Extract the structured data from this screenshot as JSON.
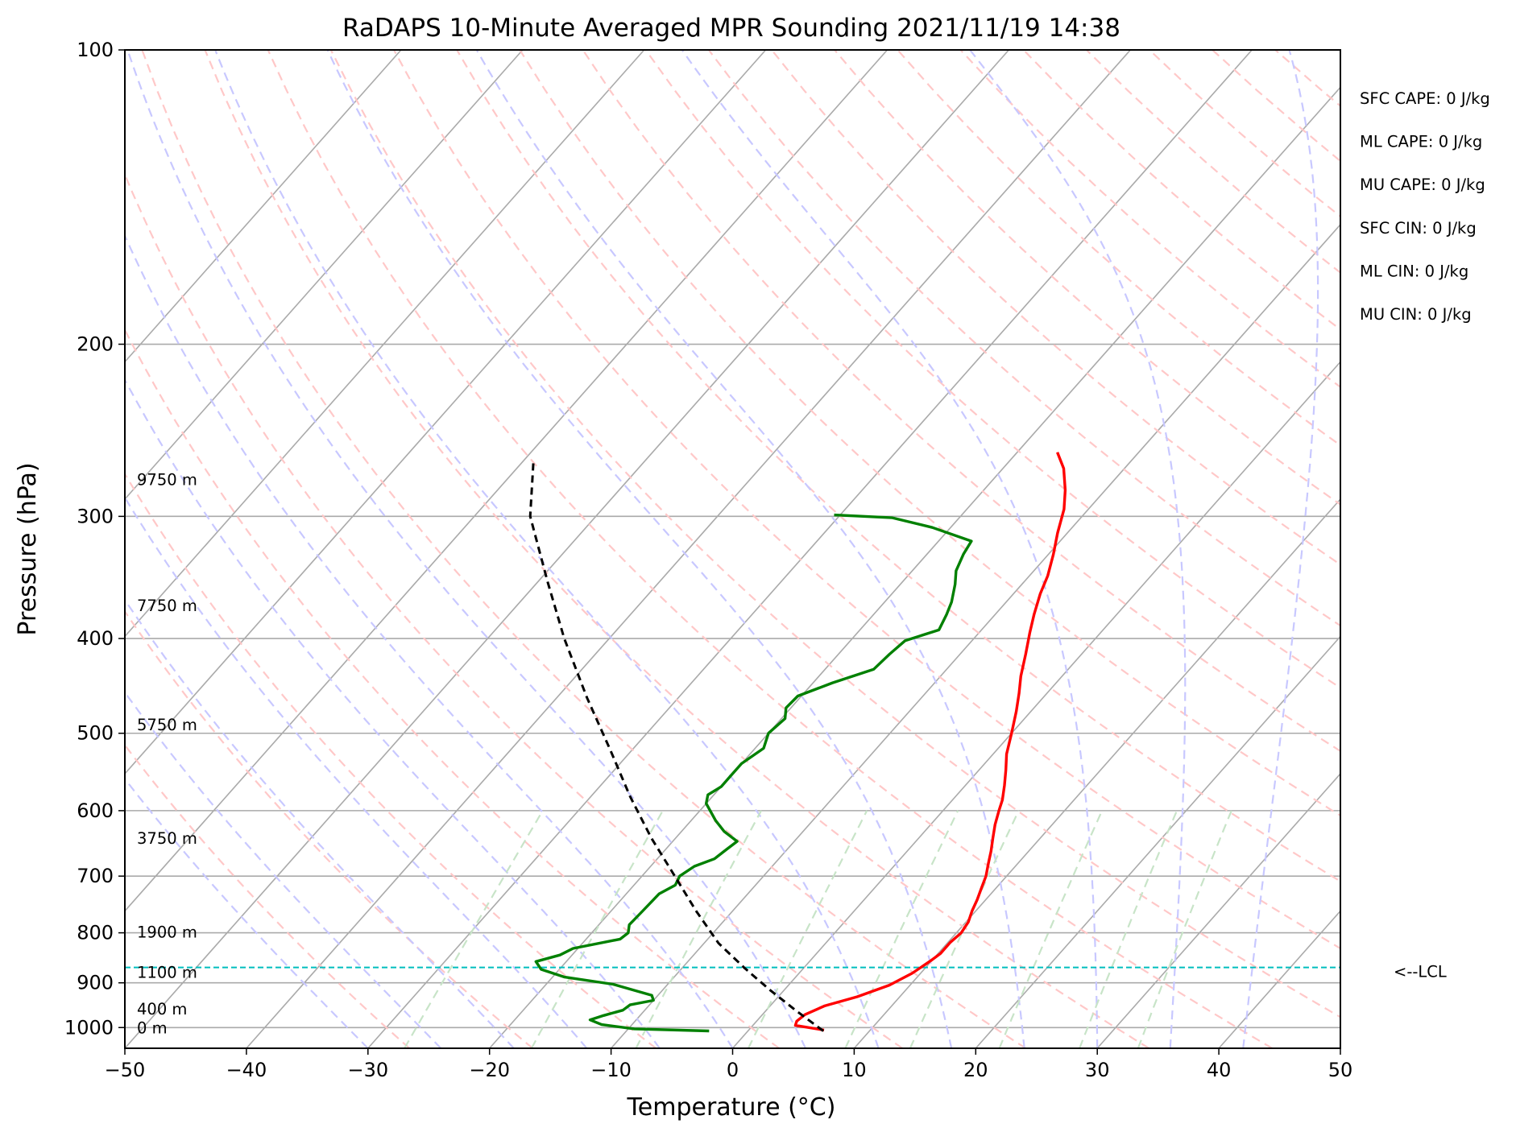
{
  "chart_data": {
    "type": "line",
    "title": "RaDAPS 10-Minute Averaged MPR Sounding 2021/11/19 14:38",
    "xlabel": "Temperature (°C)",
    "ylabel": "Pressure (hPa)",
    "xlim": [
      -50,
      50
    ],
    "ylim": [
      1050,
      100
    ],
    "y_scale": "log",
    "skew": true,
    "grid": true,
    "x_ticks": [
      -50,
      -40,
      -30,
      -20,
      -10,
      0,
      10,
      20,
      30,
      40,
      50
    ],
    "x_tick_labels": [
      "−50",
      "−40",
      "−30",
      "−20",
      "−10",
      "0",
      "10",
      "20",
      "30",
      "40",
      "50"
    ],
    "y_ticks": [
      100,
      200,
      300,
      400,
      500,
      600,
      700,
      800,
      900,
      1000
    ],
    "y_tick_labels": [
      "100",
      "200",
      "300",
      "400",
      "500",
      "600",
      "700",
      "800",
      "900",
      "1000"
    ],
    "series": [
      {
        "color": "#ff0000",
        "points": [
          [
            1006,
            6.2
          ],
          [
            995,
            3.5
          ],
          [
            985,
            3.3
          ],
          [
            970,
            3.5
          ],
          [
            950,
            4.5
          ],
          [
            930,
            6.5
          ],
          [
            905,
            8.3
          ],
          [
            880,
            9.3
          ],
          [
            855,
            9.9
          ],
          [
            840,
            10.2
          ],
          [
            818,
            10.2
          ],
          [
            800,
            10.4
          ],
          [
            780,
            10.2
          ],
          [
            760,
            9.7
          ],
          [
            740,
            9.3
          ],
          [
            720,
            8.8
          ],
          [
            700,
            8.3
          ],
          [
            680,
            7.6
          ],
          [
            660,
            6.9
          ],
          [
            640,
            6.1
          ],
          [
            620,
            5.3
          ],
          [
            600,
            4.6
          ],
          [
            585,
            4.1
          ],
          [
            565,
            3.2
          ],
          [
            545,
            2.2
          ],
          [
            525,
            1.1
          ],
          [
            500,
            0.0
          ],
          [
            475,
            -1.2
          ],
          [
            455,
            -2.3
          ],
          [
            437,
            -3.4
          ],
          [
            415,
            -4.6
          ],
          [
            395,
            -5.8
          ],
          [
            378,
            -6.8
          ],
          [
            360,
            -7.8
          ],
          [
            345,
            -8.5
          ],
          [
            328,
            -9.6
          ],
          [
            312,
            -10.8
          ],
          [
            295,
            -12.0
          ],
          [
            282,
            -13.3
          ],
          [
            268,
            -15.0
          ],
          [
            258,
            -16.7
          ]
        ]
      },
      {
        "color": "#008000",
        "points": [
          [
            1008,
            -3.2
          ],
          [
            1003,
            -9.5
          ],
          [
            993,
            -12.5
          ],
          [
            982,
            -13.8
          ],
          [
            972,
            -13.0
          ],
          [
            960,
            -11.8
          ],
          [
            948,
            -11.6
          ],
          [
            938,
            -10.0
          ],
          [
            927,
            -10.5
          ],
          [
            915,
            -12.5
          ],
          [
            903,
            -14.5
          ],
          [
            888,
            -19.0
          ],
          [
            872,
            -21.5
          ],
          [
            856,
            -22.5
          ],
          [
            843,
            -21.0
          ],
          [
            830,
            -20.4
          ],
          [
            812,
            -17.2
          ],
          [
            800,
            -17.0
          ],
          [
            785,
            -17.5
          ],
          [
            760,
            -17.4
          ],
          [
            730,
            -17.3
          ],
          [
            715,
            -16.6
          ],
          [
            700,
            -16.9
          ],
          [
            684,
            -16.4
          ],
          [
            672,
            -15.3
          ],
          [
            658,
            -15.0
          ],
          [
            645,
            -14.7
          ],
          [
            630,
            -16.5
          ],
          [
            614,
            -18.0
          ],
          [
            590,
            -20.0
          ],
          [
            578,
            -20.5
          ],
          [
            567,
            -20.0
          ],
          [
            554,
            -20.0
          ],
          [
            537,
            -20.0
          ],
          [
            518,
            -19.3
          ],
          [
            500,
            -20.0
          ],
          [
            483,
            -19.7
          ],
          [
            471,
            -20.4
          ],
          [
            458,
            -20.3
          ],
          [
            444,
            -18.4
          ],
          [
            430,
            -16.0
          ],
          [
            415,
            -15.8
          ],
          [
            402,
            -15.5
          ],
          [
            392,
            -13.5
          ],
          [
            378,
            -14.0
          ],
          [
            367,
            -14.5
          ],
          [
            352,
            -15.5
          ],
          [
            341,
            -16.4
          ],
          [
            328,
            -17.0
          ],
          [
            318,
            -17.3
          ],
          [
            308,
            -21.5
          ],
          [
            301,
            -25.5
          ],
          [
            299,
            -30.5
          ]
        ]
      },
      {
        "color": "#000000",
        "points": [
          [
            1008,
            6.2
          ],
          [
            960,
            2.4
          ],
          [
            915,
            -1.2
          ],
          [
            870,
            -4.8
          ],
          [
            820,
            -8.8
          ],
          [
            760,
            -13.0
          ],
          [
            700,
            -17.3
          ],
          [
            640,
            -22.0
          ],
          [
            580,
            -26.8
          ],
          [
            520,
            -31.8
          ],
          [
            460,
            -37.5
          ],
          [
            400,
            -43.7
          ],
          [
            350,
            -49.2
          ],
          [
            300,
            -55.4
          ],
          [
            263,
            -59.2
          ]
        ]
      }
    ],
    "height_labels": [
      "9750 m",
      "7750 m",
      "5750 m",
      "3750 m",
      "1900 m",
      "1100 m",
      "400 m",
      "0 m"
    ],
    "height_label_pressures": [
      275,
      370,
      490,
      640,
      798,
      878,
      957,
      1000
    ],
    "lcl_pressure": 868,
    "lcl_label": "<--LCL",
    "indices": [
      "SFC CAPE: 0 J/kg",
      "ML CAPE: 0 J/kg",
      "MU CAPE: 0 J/kg",
      "SFC CIN: 0 J/kg",
      "ML CIN: 0 J/kg",
      "MU CIN: 0 J/kg"
    ],
    "colors": {
      "temperature": "#ff0000",
      "dewpoint": "#008000",
      "parcel": "#000000",
      "isotherm_grid": "#aaaaaa",
      "dry_adiabat": "#ffc8c8",
      "moist_adiabat": "#c8c8ff",
      "mixing_ratio": "#c8e4c8",
      "lcl": "#00bebe"
    }
  }
}
